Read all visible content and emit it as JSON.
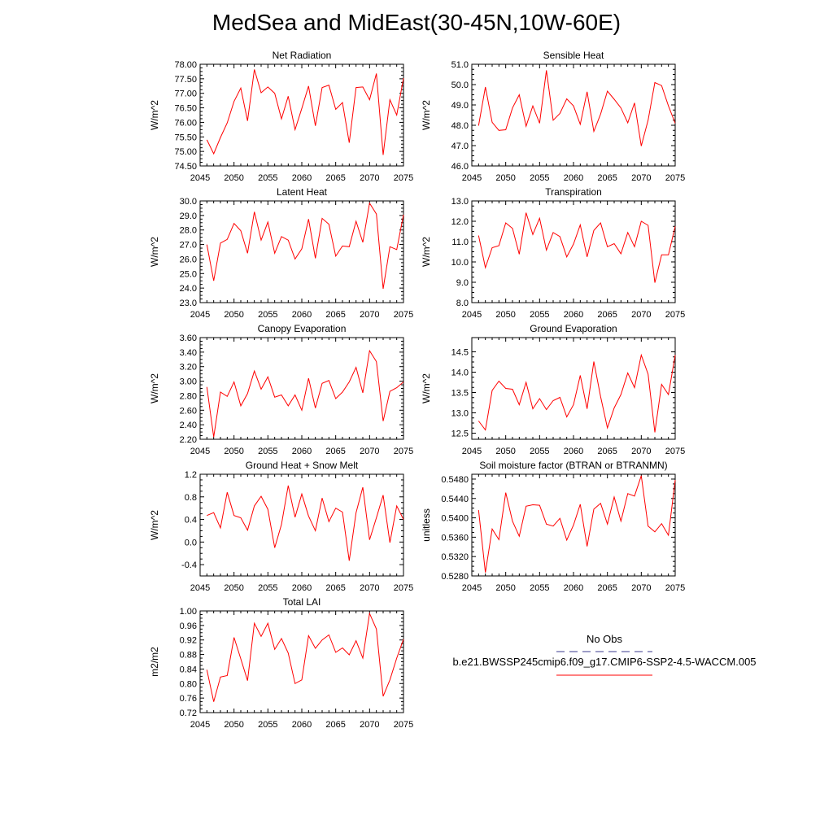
{
  "title": "MedSea and MidEast(30-45N,10W-60E)",
  "legend": {
    "obs_label": "No Obs",
    "obs_color": "#3b3b8f",
    "model_label": "b.e21.BWSSP245cmip6.f09_g17.CMIP6-SSP2-4.5-WACCM.005",
    "model_color": "#ff0000"
  },
  "chart_data": [
    {
      "type": "line",
      "title": "Net Radiation",
      "ylabel": "W/m^2",
      "xlim": [
        2045,
        2075
      ],
      "ylim": [
        74.5,
        78.0
      ],
      "xticks": [
        "2045",
        "2050",
        "2055",
        "2060",
        "2065",
        "2070",
        "2075"
      ],
      "yticks": [
        "74.50",
        "75.00",
        "75.50",
        "76.00",
        "76.50",
        "77.00",
        "77.50",
        "78.00"
      ],
      "x": [
        2046,
        2047,
        2048,
        2049,
        2050,
        2051,
        2052,
        2053,
        2054,
        2055,
        2056,
        2057,
        2058,
        2059,
        2060,
        2061,
        2062,
        2063,
        2064,
        2065,
        2066,
        2067,
        2068,
        2069,
        2070,
        2071,
        2072,
        2073,
        2074,
        2075
      ],
      "series": [
        {
          "values": [
            75.4,
            74.92,
            75.48,
            75.98,
            76.72,
            77.18,
            76.05,
            77.82,
            77.02,
            77.22,
            77.0,
            76.12,
            76.9,
            75.75,
            76.48,
            77.25,
            75.88,
            77.2,
            77.28,
            76.45,
            76.68,
            75.3,
            77.2,
            77.22,
            76.78,
            77.68,
            74.88,
            76.78,
            76.25,
            77.52
          ]
        }
      ]
    },
    {
      "type": "line",
      "title": "Sensible Heat",
      "ylabel": "W/m^2",
      "xlim": [
        2045,
        2075
      ],
      "ylim": [
        46.0,
        51.0
      ],
      "xticks": [
        "2045",
        "2050",
        "2055",
        "2060",
        "2065",
        "2070",
        "2075"
      ],
      "yticks": [
        "46.0",
        "47.0",
        "48.0",
        "49.0",
        "50.0",
        "51.0"
      ],
      "x": [
        2046,
        2047,
        2048,
        2049,
        2050,
        2051,
        2052,
        2053,
        2054,
        2055,
        2056,
        2057,
        2058,
        2059,
        2060,
        2061,
        2062,
        2063,
        2064,
        2065,
        2066,
        2067,
        2068,
        2069,
        2070,
        2071,
        2072,
        2073,
        2074,
        2075
      ],
      "series": [
        {
          "values": [
            47.98,
            49.88,
            48.15,
            47.75,
            47.78,
            48.85,
            49.5,
            47.95,
            48.95,
            48.1,
            50.7,
            48.25,
            48.58,
            49.3,
            48.95,
            48.05,
            49.65,
            47.7,
            48.55,
            49.68,
            49.28,
            48.85,
            48.12,
            49.1,
            46.98,
            48.25,
            50.1,
            49.95,
            48.95,
            48.1
          ]
        }
      ]
    },
    {
      "type": "line",
      "title": "Latent Heat",
      "ylabel": "W/m^2",
      "xlim": [
        2045,
        2075
      ],
      "ylim": [
        23.0,
        30.0
      ],
      "xticks": [
        "2045",
        "2050",
        "2055",
        "2060",
        "2065",
        "2070",
        "2075"
      ],
      "yticks": [
        "23.0",
        "24.0",
        "25.0",
        "26.0",
        "27.0",
        "28.0",
        "29.0",
        "30.0"
      ],
      "x": [
        2046,
        2047,
        2048,
        2049,
        2050,
        2051,
        2052,
        2053,
        2054,
        2055,
        2056,
        2057,
        2058,
        2059,
        2060,
        2061,
        2062,
        2063,
        2064,
        2065,
        2066,
        2067,
        2068,
        2069,
        2070,
        2071,
        2072,
        2073,
        2074,
        2075
      ],
      "series": [
        {
          "values": [
            27.0,
            24.5,
            27.1,
            27.35,
            28.45,
            27.95,
            26.4,
            29.25,
            27.3,
            28.55,
            26.4,
            27.55,
            27.3,
            26.0,
            26.7,
            28.75,
            26.05,
            28.8,
            28.4,
            26.2,
            26.9,
            26.85,
            28.6,
            27.15,
            29.85,
            29.1,
            23.95,
            26.85,
            26.65,
            29.05
          ]
        }
      ]
    },
    {
      "type": "line",
      "title": "Transpiration",
      "ylabel": "W/m^2",
      "xlim": [
        2045,
        2075
      ],
      "ylim": [
        8.0,
        13.0
      ],
      "xticks": [
        "2045",
        "2050",
        "2055",
        "2060",
        "2065",
        "2070",
        "2075"
      ],
      "yticks": [
        "8.0",
        "9.0",
        "10.0",
        "11.0",
        "12.0",
        "13.0"
      ],
      "x": [
        2046,
        2047,
        2048,
        2049,
        2050,
        2051,
        2052,
        2053,
        2054,
        2055,
        2056,
        2057,
        2058,
        2059,
        2060,
        2061,
        2062,
        2063,
        2064,
        2065,
        2066,
        2067,
        2068,
        2069,
        2070,
        2071,
        2072,
        2073,
        2074,
        2075
      ],
      "series": [
        {
          "values": [
            11.3,
            9.72,
            10.7,
            10.8,
            11.92,
            11.65,
            10.38,
            12.42,
            11.35,
            12.15,
            10.58,
            11.45,
            11.25,
            10.25,
            10.88,
            11.82,
            10.25,
            11.55,
            11.92,
            10.75,
            10.9,
            10.4,
            11.45,
            10.75,
            12.0,
            11.8,
            8.98,
            10.35,
            10.35,
            11.75
          ]
        }
      ]
    },
    {
      "type": "line",
      "title": "Canopy Evaporation",
      "ylabel": "W/m^2",
      "xlim": [
        2045,
        2075
      ],
      "ylim": [
        2.2,
        3.6
      ],
      "xticks": [
        "2045",
        "2050",
        "2055",
        "2060",
        "2065",
        "2070",
        "2075"
      ],
      "yticks": [
        "2.20",
        "2.40",
        "2.60",
        "2.80",
        "3.00",
        "3.20",
        "3.40",
        "3.60"
      ],
      "x": [
        2046,
        2047,
        2048,
        2049,
        2050,
        2051,
        2052,
        2053,
        2054,
        2055,
        2056,
        2057,
        2058,
        2059,
        2060,
        2061,
        2062,
        2063,
        2064,
        2065,
        2066,
        2067,
        2068,
        2069,
        2070,
        2071,
        2072,
        2073,
        2074,
        2075
      ],
      "series": [
        {
          "values": [
            2.92,
            2.23,
            2.85,
            2.79,
            2.99,
            2.66,
            2.83,
            3.14,
            2.89,
            3.06,
            2.78,
            2.81,
            2.66,
            2.81,
            2.6,
            3.04,
            2.63,
            2.97,
            3.01,
            2.76,
            2.85,
            2.99,
            3.19,
            2.84,
            3.42,
            3.27,
            2.45,
            2.86,
            2.91,
            2.99
          ]
        }
      ]
    },
    {
      "type": "line",
      "title": "Ground Evaporation",
      "ylabel": "W/m^2",
      "xlim": [
        2045,
        2075
      ],
      "ylim": [
        12.35,
        14.85
      ],
      "xticks": [
        "2045",
        "2050",
        "2055",
        "2060",
        "2065",
        "2070",
        "2075"
      ],
      "yticks": [
        "12.5",
        "13.0",
        "13.5",
        "14.0",
        "14.5"
      ],
      "x": [
        2046,
        2047,
        2048,
        2049,
        2050,
        2051,
        2052,
        2053,
        2054,
        2055,
        2056,
        2057,
        2058,
        2059,
        2060,
        2061,
        2062,
        2063,
        2064,
        2065,
        2066,
        2067,
        2068,
        2069,
        2070,
        2071,
        2072,
        2073,
        2074,
        2075
      ],
      "series": [
        {
          "values": [
            12.8,
            12.58,
            13.55,
            13.78,
            13.6,
            13.58,
            13.2,
            13.75,
            13.1,
            13.35,
            13.08,
            13.3,
            13.38,
            12.9,
            13.2,
            13.92,
            13.1,
            14.26,
            13.4,
            12.63,
            13.12,
            13.45,
            13.98,
            13.62,
            14.42,
            13.95,
            12.52,
            13.7,
            13.45,
            14.42
          ]
        }
      ]
    },
    {
      "type": "line",
      "title": "Ground Heat + Snow Melt",
      "ylabel": "W/m^2",
      "xlim": [
        2045,
        2075
      ],
      "ylim": [
        -0.6,
        1.2
      ],
      "xticks": [
        "2045",
        "2050",
        "2055",
        "2060",
        "2065",
        "2070",
        "2075"
      ],
      "yticks": [
        "-0.4",
        "0.0",
        "0.4",
        "0.8",
        "1.2"
      ],
      "x": [
        2046,
        2047,
        2048,
        2049,
        2050,
        2051,
        2052,
        2053,
        2054,
        2055,
        2056,
        2057,
        2058,
        2059,
        2060,
        2061,
        2062,
        2063,
        2064,
        2065,
        2066,
        2067,
        2068,
        2069,
        2070,
        2071,
        2072,
        2073,
        2074,
        2075
      ],
      "series": [
        {
          "values": [
            0.47,
            0.52,
            0.25,
            0.88,
            0.47,
            0.43,
            0.21,
            0.64,
            0.81,
            0.58,
            -0.1,
            0.31,
            1.0,
            0.44,
            0.85,
            0.46,
            0.2,
            0.78,
            0.36,
            0.6,
            0.53,
            -0.33,
            0.52,
            0.97,
            0.04,
            0.43,
            0.83,
            -0.01,
            0.64,
            0.4
          ]
        }
      ]
    },
    {
      "type": "line",
      "title": "Soil moisture factor (BTRAN or BTRANMN)",
      "ylabel": "unitless",
      "xlim": [
        2045,
        2075
      ],
      "ylim": [
        0.528,
        0.549
      ],
      "xticks": [
        "2045",
        "2050",
        "2055",
        "2060",
        "2065",
        "2070",
        "2075"
      ],
      "yticks": [
        "0.5280",
        "0.5320",
        "0.5360",
        "0.5400",
        "0.5440",
        "0.5480"
      ],
      "x": [
        2046,
        2047,
        2048,
        2049,
        2050,
        2051,
        2052,
        2053,
        2054,
        2055,
        2056,
        2057,
        2058,
        2059,
        2060,
        2061,
        2062,
        2063,
        2064,
        2065,
        2066,
        2067,
        2068,
        2069,
        2070,
        2071,
        2072,
        2073,
        2074,
        2075
      ],
      "series": [
        {
          "values": [
            0.5416,
            0.5287,
            0.5377,
            0.5355,
            0.5452,
            0.5393,
            0.5362,
            0.5424,
            0.5427,
            0.5426,
            0.5387,
            0.5383,
            0.5399,
            0.5354,
            0.5385,
            0.5428,
            0.5341,
            0.5418,
            0.543,
            0.5387,
            0.5443,
            0.5393,
            0.545,
            0.5445,
            0.5487,
            0.5383,
            0.5371,
            0.5388,
            0.5364,
            0.5478
          ]
        }
      ]
    },
    {
      "type": "line",
      "title": "Total LAI",
      "ylabel": "m2/m2",
      "xlim": [
        2045,
        2075
      ],
      "ylim": [
        0.72,
        1.0
      ],
      "xticks": [
        "2045",
        "2050",
        "2055",
        "2060",
        "2065",
        "2070",
        "2075"
      ],
      "yticks": [
        "0.72",
        "0.76",
        "0.80",
        "0.84",
        "0.88",
        "0.92",
        "0.96",
        "1.00"
      ],
      "x": [
        2046,
        2047,
        2048,
        2049,
        2050,
        2051,
        2052,
        2053,
        2054,
        2055,
        2056,
        2057,
        2058,
        2059,
        2060,
        2061,
        2062,
        2063,
        2064,
        2065,
        2066,
        2067,
        2068,
        2069,
        2070,
        2071,
        2072,
        2073,
        2074,
        2075
      ],
      "series": [
        {
          "values": [
            0.838,
            0.75,
            0.818,
            0.822,
            0.927,
            0.868,
            0.808,
            0.966,
            0.93,
            0.966,
            0.894,
            0.924,
            0.884,
            0.8,
            0.81,
            0.932,
            0.897,
            0.92,
            0.934,
            0.886,
            0.898,
            0.879,
            0.918,
            0.87,
            0.993,
            0.95,
            0.765,
            0.81,
            0.87,
            0.922
          ]
        }
      ]
    }
  ]
}
